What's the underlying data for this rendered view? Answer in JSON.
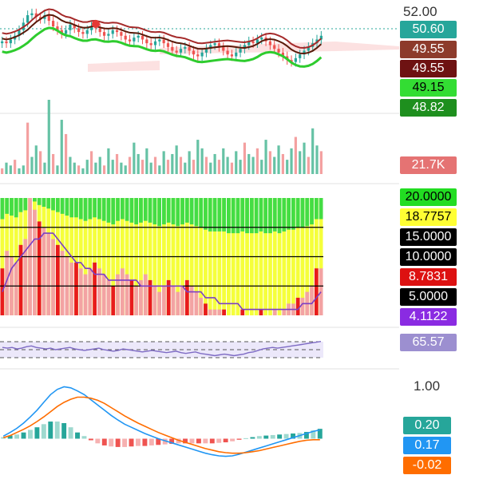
{
  "chart_data": [
    {
      "panel": "price",
      "type": "candlestick",
      "price_scale_label": "52.00",
      "price_tags": [
        {
          "value": "50.60",
          "bg": "#26a69a",
          "fg": "#ffffff"
        },
        {
          "value": "49.55",
          "bg": "#8d3b2b",
          "fg": "#ffffff"
        },
        {
          "value": "49.55",
          "bg": "#6e1212",
          "fg": "#ffffff"
        },
        {
          "value": "49.15",
          "bg": "#33dd33",
          "fg": "#000000"
        },
        {
          "value": "48.82",
          "bg": "#1e8f1e",
          "fg": "#ffffff"
        }
      ],
      "ylim": [
        47.6,
        52.3
      ],
      "closes": [
        50.3,
        50.2,
        50.4,
        50.6,
        50.9,
        51.3,
        51.7,
        51.8,
        51.6,
        51.5,
        51.7,
        51.4,
        51.1,
        50.9,
        50.7,
        50.9,
        51.2,
        51.0,
        50.8,
        50.7,
        50.9,
        51.1,
        51.0,
        50.8,
        50.6,
        50.7,
        50.9,
        50.8,
        50.6,
        50.4,
        50.3,
        50.5,
        50.6,
        50.4,
        50.2,
        50.1,
        50.3,
        50.4,
        50.2,
        50.0,
        49.8,
        49.7,
        49.9,
        50.0,
        49.8,
        49.6,
        49.5,
        49.7,
        49.9,
        50.1,
        50.2,
        50.0,
        49.8,
        49.6,
        49.5,
        49.7,
        49.9,
        50.1,
        50.3,
        50.2,
        50.4,
        50.5,
        50.3,
        50.1,
        49.9,
        49.7,
        49.5,
        49.3,
        49.2,
        49.4,
        49.6,
        49.8,
        50.0,
        50.2,
        50.4,
        50.6
      ],
      "lines": [
        {
          "color": "#a52a2a"
        },
        {
          "color": "#5a1a0a"
        },
        {
          "color": "#2ecc2e"
        }
      ]
    },
    {
      "panel": "volume",
      "type": "bar",
      "label": "21.7K",
      "label_bg": "#e57373",
      "values": [
        2,
        4,
        3,
        5,
        2,
        3,
        18,
        6,
        10,
        8,
        4,
        26,
        7,
        3,
        19,
        14,
        6,
        4,
        3,
        2,
        5,
        8,
        4,
        6,
        3,
        9,
        5,
        7,
        4,
        3,
        6,
        11,
        7,
        5,
        9,
        4,
        6,
        3,
        8,
        5,
        7,
        10,
        6,
        4,
        8,
        5,
        12,
        9,
        6,
        4,
        7,
        5,
        9,
        6,
        4,
        8,
        5,
        11,
        7,
        6,
        9,
        5,
        12,
        8,
        6,
        10,
        7,
        5,
        9,
        13,
        8,
        11,
        6,
        16,
        10,
        8
      ],
      "colors_up": "#66c2a5",
      "colors_down": "#f4a0a0"
    },
    {
      "panel": "indicator",
      "type": "bar",
      "levels": [
        "20.0000",
        "18.7757",
        "15.0000",
        "10.0000",
        "8.7831",
        "5.0000",
        "4.1122"
      ],
      "level_tag_colors": [
        {
          "bg": "#22dd22",
          "fg": "#000000"
        },
        {
          "bg": "#ffff33",
          "fg": "#000000"
        },
        {
          "bg": "#000000",
          "fg": "#ffffff"
        },
        {
          "bg": "#000000",
          "fg": "#ffffff"
        },
        {
          "bg": "#dd1111",
          "fg": "#ffffff"
        },
        {
          "bg": "#000000",
          "fg": "#ffffff"
        },
        {
          "bg": "#8a2be2",
          "fg": "#ffffff"
        }
      ],
      "ylim": [
        0,
        20
      ],
      "values": [
        8,
        11,
        10,
        9,
        12,
        13,
        20,
        18,
        16,
        15,
        14,
        13,
        12,
        11,
        10,
        9,
        9,
        8,
        7,
        8,
        9,
        8,
        7,
        6,
        5,
        7,
        8,
        7,
        6,
        5,
        6,
        7,
        6,
        5,
        4,
        5,
        6,
        5,
        4,
        5,
        6,
        5,
        4,
        3,
        2,
        1,
        1,
        1,
        1,
        0,
        0,
        0,
        1,
        0,
        0,
        0,
        1,
        0,
        0,
        1,
        0,
        1,
        2,
        2,
        3,
        3,
        4,
        5,
        8,
        8
      ],
      "series": [
        {
          "name": "",
          "values": [
            4,
            6,
            8,
            9,
            10,
            11,
            12,
            13,
            13,
            14,
            14,
            14,
            13,
            12,
            11,
            10,
            9,
            9,
            8,
            8,
            7,
            7,
            7,
            6,
            6,
            6,
            6,
            6,
            6,
            6,
            5,
            5,
            5,
            5,
            5,
            5,
            5,
            5,
            5,
            5,
            4,
            4,
            4,
            4,
            3,
            3,
            3,
            2,
            2,
            2,
            2,
            2,
            1,
            1,
            1,
            1,
            1,
            1,
            1,
            1,
            1,
            1,
            1,
            1,
            1,
            2,
            2,
            2,
            3,
            4
          ]
        }
      ]
    },
    {
      "panel": "rsi",
      "type": "line",
      "label": "65.57",
      "label_bg": "#9c8fd0",
      "values": [
        58,
        57,
        58,
        56,
        57,
        59,
        60,
        58,
        57,
        56,
        57,
        55,
        56,
        57,
        58,
        56,
        55,
        54,
        55,
        56,
        57,
        55,
        54,
        53,
        54,
        56,
        55,
        54,
        53,
        52,
        53,
        54,
        53,
        52,
        51,
        52,
        53,
        51,
        50,
        51,
        52,
        50,
        49,
        48,
        47,
        48,
        49,
        48,
        47,
        48,
        49,
        51,
        52,
        54,
        56,
        57,
        58,
        57,
        58,
        59,
        60,
        61,
        62,
        63,
        64,
        65,
        66
      ]
    },
    {
      "panel": "macd",
      "type": "line",
      "scale_label": "1.00",
      "tags": [
        {
          "value": "0.20",
          "bg": "#26a69a",
          "fg": "#ffffff"
        },
        {
          "value": "0.17",
          "bg": "#2196f3",
          "fg": "#ffffff"
        },
        {
          "value": "-0.02",
          "bg": "#ff6d00",
          "fg": "#ffffff"
        }
      ],
      "ylim": [
        -0.5,
        1.1
      ],
      "macd": [
        0.05,
        0.12,
        0.2,
        0.3,
        0.42,
        0.55,
        0.7,
        0.85,
        0.95,
        1.0,
        0.98,
        0.92,
        0.85,
        0.75,
        0.65,
        0.55,
        0.45,
        0.36,
        0.28,
        0.22,
        0.16,
        0.1,
        0.05,
        0.0,
        -0.04,
        -0.08,
        -0.12,
        -0.16,
        -0.2,
        -0.24,
        -0.28,
        -0.31,
        -0.33,
        -0.34,
        -0.33,
        -0.3,
        -0.26,
        -0.22,
        -0.18,
        -0.14,
        -0.1,
        -0.06,
        -0.02,
        0.02,
        0.06,
        0.1,
        0.14,
        0.17
      ],
      "signal": [
        0.02,
        0.06,
        0.12,
        0.18,
        0.25,
        0.33,
        0.42,
        0.52,
        0.62,
        0.7,
        0.76,
        0.8,
        0.8,
        0.78,
        0.74,
        0.68,
        0.6,
        0.52,
        0.44,
        0.37,
        0.3,
        0.24,
        0.18,
        0.12,
        0.07,
        0.02,
        -0.03,
        -0.07,
        -0.11,
        -0.15,
        -0.19,
        -0.22,
        -0.25,
        -0.27,
        -0.28,
        -0.28,
        -0.27,
        -0.25,
        -0.23,
        -0.2,
        -0.17,
        -0.14,
        -0.11,
        -0.08,
        -0.05,
        -0.03,
        -0.02,
        -0.02
      ]
    }
  ]
}
